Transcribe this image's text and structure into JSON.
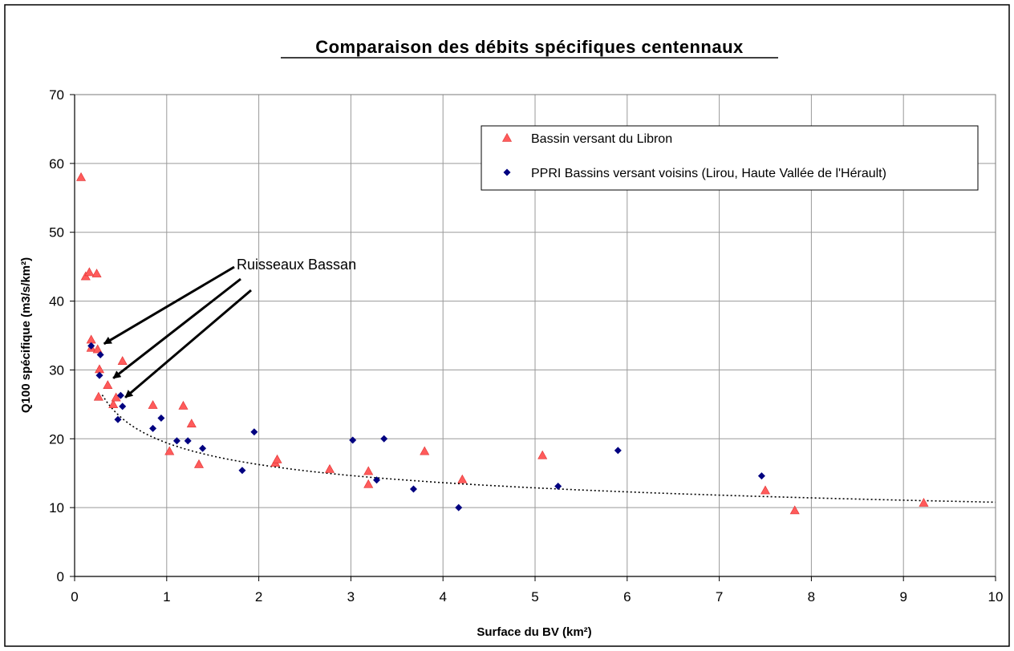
{
  "chart_data": {
    "type": "scatter",
    "title": "Comparaison des débits spécifiques centennaux",
    "xlabel": "Surface du BV (km²)",
    "ylabel": "Q100 spécifique (m3/s/km²)",
    "xlim": [
      0,
      10
    ],
    "ylim": [
      0,
      70
    ],
    "x_ticks": [
      "0",
      "1",
      "2",
      "3",
      "4",
      "5",
      "6",
      "7",
      "8",
      "9",
      "10"
    ],
    "y_ticks": [
      "0",
      "10",
      "20",
      "30",
      "40",
      "50",
      "60",
      "70"
    ],
    "grid": true,
    "legend_position": "top-right",
    "series": [
      {
        "name": "Bassin versant du Libron",
        "marker": "triangle",
        "color": "#ff5b5b",
        "points": [
          [
            0.07,
            58.0
          ],
          [
            0.12,
            43.6
          ],
          [
            0.16,
            44.2
          ],
          [
            0.24,
            44.0
          ],
          [
            0.18,
            34.4
          ],
          [
            0.18,
            33.2
          ],
          [
            0.25,
            33.0
          ],
          [
            0.27,
            30.1
          ],
          [
            0.26,
            26.1
          ],
          [
            0.36,
            27.8
          ],
          [
            0.42,
            25.0
          ],
          [
            0.45,
            26.0
          ],
          [
            0.52,
            31.3
          ],
          [
            0.85,
            24.9
          ],
          [
            1.03,
            18.2
          ],
          [
            1.18,
            24.8
          ],
          [
            1.27,
            22.2
          ],
          [
            1.35,
            16.3
          ],
          [
            2.18,
            16.5
          ],
          [
            2.2,
            17.0
          ],
          [
            2.77,
            15.6
          ],
          [
            3.19,
            15.3
          ],
          [
            3.19,
            13.4
          ],
          [
            3.8,
            18.2
          ],
          [
            4.21,
            14.1
          ],
          [
            5.08,
            17.6
          ],
          [
            7.5,
            12.5
          ],
          [
            7.82,
            9.6
          ],
          [
            9.22,
            10.7
          ]
        ]
      },
      {
        "name": "PPRI Bassins versant voisins (Lirou, Haute Vallée de l'Hérault)",
        "marker": "diamond",
        "color": "#000080",
        "points": [
          [
            0.18,
            33.5
          ],
          [
            0.28,
            32.2
          ],
          [
            0.27,
            29.2
          ],
          [
            0.47,
            22.8
          ],
          [
            0.52,
            24.7
          ],
          [
            0.5,
            26.3
          ],
          [
            0.85,
            21.5
          ],
          [
            0.94,
            23.0
          ],
          [
            1.11,
            19.7
          ],
          [
            1.23,
            19.7
          ],
          [
            1.39,
            18.6
          ],
          [
            1.82,
            15.4
          ],
          [
            1.95,
            21.0
          ],
          [
            3.02,
            19.8
          ],
          [
            3.28,
            14.0
          ],
          [
            3.36,
            20.0
          ],
          [
            3.68,
            12.7
          ],
          [
            4.17,
            10.0
          ],
          [
            5.25,
            13.1
          ],
          [
            5.9,
            18.3
          ],
          [
            7.46,
            14.6
          ]
        ]
      }
    ],
    "trendline": {
      "style": "dotted",
      "type": "power",
      "coefficient": 19.4,
      "exponent": -0.255,
      "x_range": [
        0.3,
        10
      ]
    },
    "annotation": {
      "text": "Ruisseaux Bassan",
      "arrow_targets": [
        [
          0.32,
          33.8
        ],
        [
          0.42,
          28.8
        ],
        [
          0.55,
          26.0
        ]
      ]
    }
  }
}
